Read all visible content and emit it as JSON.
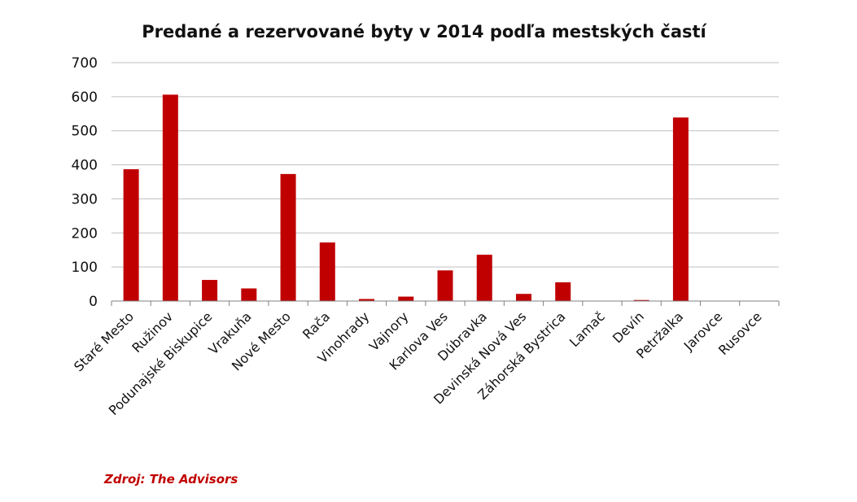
{
  "chart_data": {
    "type": "bar",
    "title": "Predané a rezervované byty v 2014 podľa mestských častí",
    "xlabel": "",
    "ylabel": "",
    "ylim": [
      0,
      700
    ],
    "yticks": [
      0,
      100,
      200,
      300,
      400,
      500,
      600,
      700
    ],
    "grid": true,
    "legend": "none",
    "bar_color": "#c00000",
    "categories": [
      "Staré Mesto",
      "Ružinov",
      "Podunajské Biskupice",
      "Vrakuňa",
      "Nové Mesto",
      "Rača",
      "Vinohrady",
      "Vajnory",
      "Karlova Ves",
      "Dúbravka",
      "Devinská Nová Ves",
      "Záhorská Bystrica",
      "Lamač",
      "Devín",
      "Petržalka",
      "Jarovce",
      "Rusovce"
    ],
    "values": [
      387,
      606,
      62,
      37,
      373,
      172,
      6,
      13,
      90,
      136,
      21,
      55,
      0,
      3,
      539,
      0,
      0
    ]
  },
  "source": {
    "text": "Zdroj: The Advisors",
    "color": "#c00000"
  }
}
